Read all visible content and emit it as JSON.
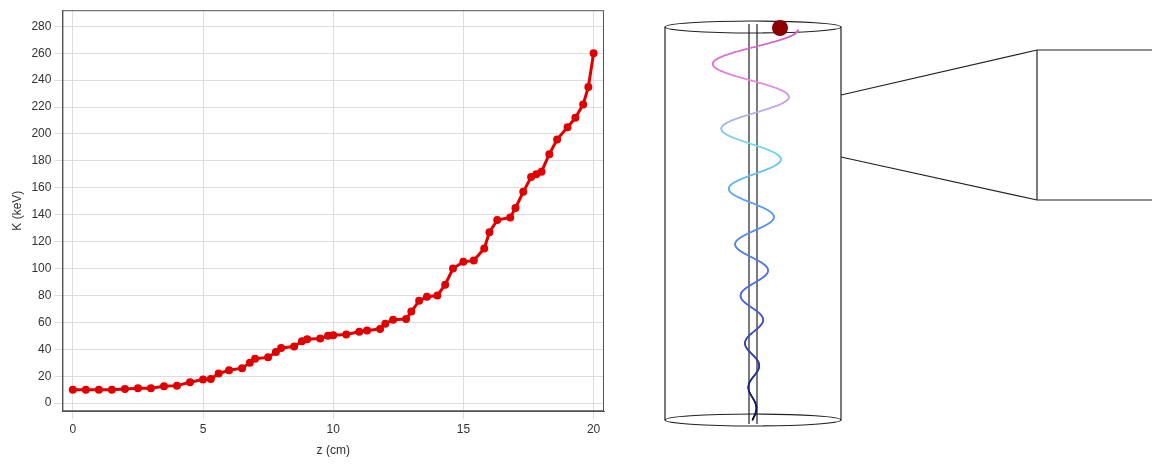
{
  "chart_data": {
    "type": "scatter",
    "x_label": "z (cm)",
    "y_label": "K (keV)",
    "x": [
      0,
      0.5,
      1,
      1.5,
      2,
      2.5,
      3,
      3.5,
      4,
      4.5,
      5,
      5.3,
      5.6,
      6,
      6.5,
      6.8,
      7,
      7.5,
      7.8,
      8,
      8.5,
      8.8,
      9,
      9.5,
      9.8,
      10,
      10.5,
      11,
      11.3,
      11.8,
      12,
      12.3,
      12.8,
      13,
      13.3,
      13.6,
      14,
      14.3,
      14.6,
      15,
      15.4,
      15.8,
      16,
      16.3,
      16.8,
      17,
      17.3,
      17.6,
      17.8,
      18,
      18.3,
      18.6,
      19,
      19.3,
      19.6,
      19.8,
      20
    ],
    "values": [
      10,
      10,
      10,
      10,
      10.5,
      11,
      11,
      12.5,
      13,
      15.5,
      17.5,
      18,
      22,
      24.5,
      26,
      30,
      33,
      34,
      38,
      41,
      42,
      46,
      47.5,
      48,
      50,
      50.5,
      51,
      53,
      54,
      55,
      59,
      62,
      62.5,
      68,
      76,
      79,
      80,
      88,
      100,
      105,
      106,
      115,
      127,
      136,
      138,
      145,
      157,
      168,
      170,
      172,
      185,
      196,
      205,
      212,
      222,
      235,
      260
    ],
    "color": "#e00000",
    "marker": "circle",
    "xlim": [
      -0.4,
      20.4
    ],
    "xticks": [
      0,
      5,
      10,
      15,
      20
    ],
    "ylim": [
      -6,
      292
    ],
    "yticks": [
      0,
      20,
      40,
      60,
      80,
      100,
      120,
      140,
      160,
      180,
      200,
      220,
      240,
      260,
      280
    ],
    "grid": true
  }
}
